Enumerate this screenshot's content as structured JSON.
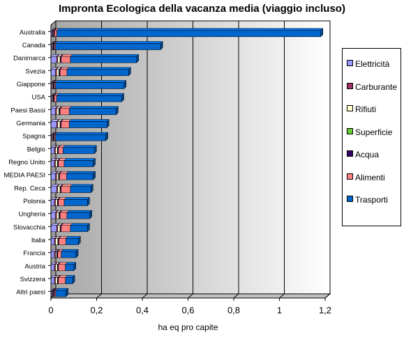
{
  "chart_data": {
    "type": "bar",
    "orientation": "horizontal",
    "stacked": true,
    "three_d": true,
    "title": "Impronta Ecologica della vacanza media (viaggio incluso)",
    "xlabel": "ha eq pro capite",
    "xlim": [
      0,
      1.2
    ],
    "xticks": [
      "0",
      "0,2",
      "0,4",
      "0,6",
      "0,8",
      "1",
      "1,2"
    ],
    "grid": true,
    "legend_position": "right",
    "categories": [
      "Australia",
      "Canada",
      "Danimarca",
      "Svezia",
      "Giappone",
      "USA",
      "Paesi Bassi",
      "Germania",
      "Spagna",
      "Belgio",
      "Regno Unito",
      "MEDIA PAESI",
      "Rep. Ceca",
      "Polonia",
      "Ungheria",
      "Slovacchia",
      "Italia",
      "Francia",
      "Austria",
      "Svizzera",
      "Altri paesi"
    ],
    "series": [
      {
        "name": "Elettricità",
        "color": "#9999ff",
        "values": [
          0.005,
          0.004,
          0.025,
          0.02,
          0.004,
          0.004,
          0.02,
          0.025,
          0.004,
          0.015,
          0.015,
          0.02,
          0.025,
          0.015,
          0.02,
          0.025,
          0.015,
          0.015,
          0.015,
          0.015,
          0.005
        ]
      },
      {
        "name": "Carburante",
        "color": "#993366",
        "values": [
          0.003,
          0.003,
          0.005,
          0.005,
          0.003,
          0.003,
          0.005,
          0.005,
          0.003,
          0.005,
          0.005,
          0.005,
          0.005,
          0.005,
          0.005,
          0.005,
          0.005,
          0.005,
          0.005,
          0.005,
          0.003
        ]
      },
      {
        "name": "Rifiuti",
        "color": "#ffffcc",
        "values": [
          0.003,
          0.003,
          0.01,
          0.01,
          0.003,
          0.003,
          0.01,
          0.01,
          0.003,
          0.008,
          0.008,
          0.008,
          0.01,
          0.008,
          0.01,
          0.01,
          0.01,
          0.005,
          0.008,
          0.008,
          0.003
        ]
      },
      {
        "name": "Superficie",
        "color": "#66cc33",
        "values": [
          0.001,
          0.001,
          0.001,
          0.001,
          0.001,
          0.001,
          0.001,
          0.001,
          0.001,
          0.001,
          0.001,
          0.001,
          0.001,
          0.001,
          0.001,
          0.001,
          0.001,
          0.001,
          0.001,
          0.001,
          0.001
        ]
      },
      {
        "name": "Acqua",
        "color": "#330066",
        "values": [
          0.004,
          0.004,
          0.004,
          0.004,
          0.004,
          0.004,
          0.004,
          0.004,
          0.004,
          0.004,
          0.004,
          0.004,
          0.004,
          0.004,
          0.004,
          0.004,
          0.004,
          0.004,
          0.004,
          0.004,
          0.004
        ]
      },
      {
        "name": "Alimenti",
        "color": "#ff8080",
        "values": [
          0.01,
          0.005,
          0.04,
          0.03,
          0.005,
          0.01,
          0.04,
          0.035,
          0.005,
          0.02,
          0.025,
          0.03,
          0.04,
          0.025,
          0.03,
          0.04,
          0.03,
          0.015,
          0.03,
          0.03,
          0.005
        ]
      },
      {
        "name": "Trasporti",
        "color": "#0066cc",
        "values": [
          1.155,
          0.46,
          0.29,
          0.27,
          0.3,
          0.285,
          0.205,
          0.165,
          0.22,
          0.137,
          0.127,
          0.117,
          0.09,
          0.102,
          0.1,
          0.075,
          0.055,
          0.065,
          0.037,
          0.032,
          0.045
        ]
      }
    ]
  }
}
